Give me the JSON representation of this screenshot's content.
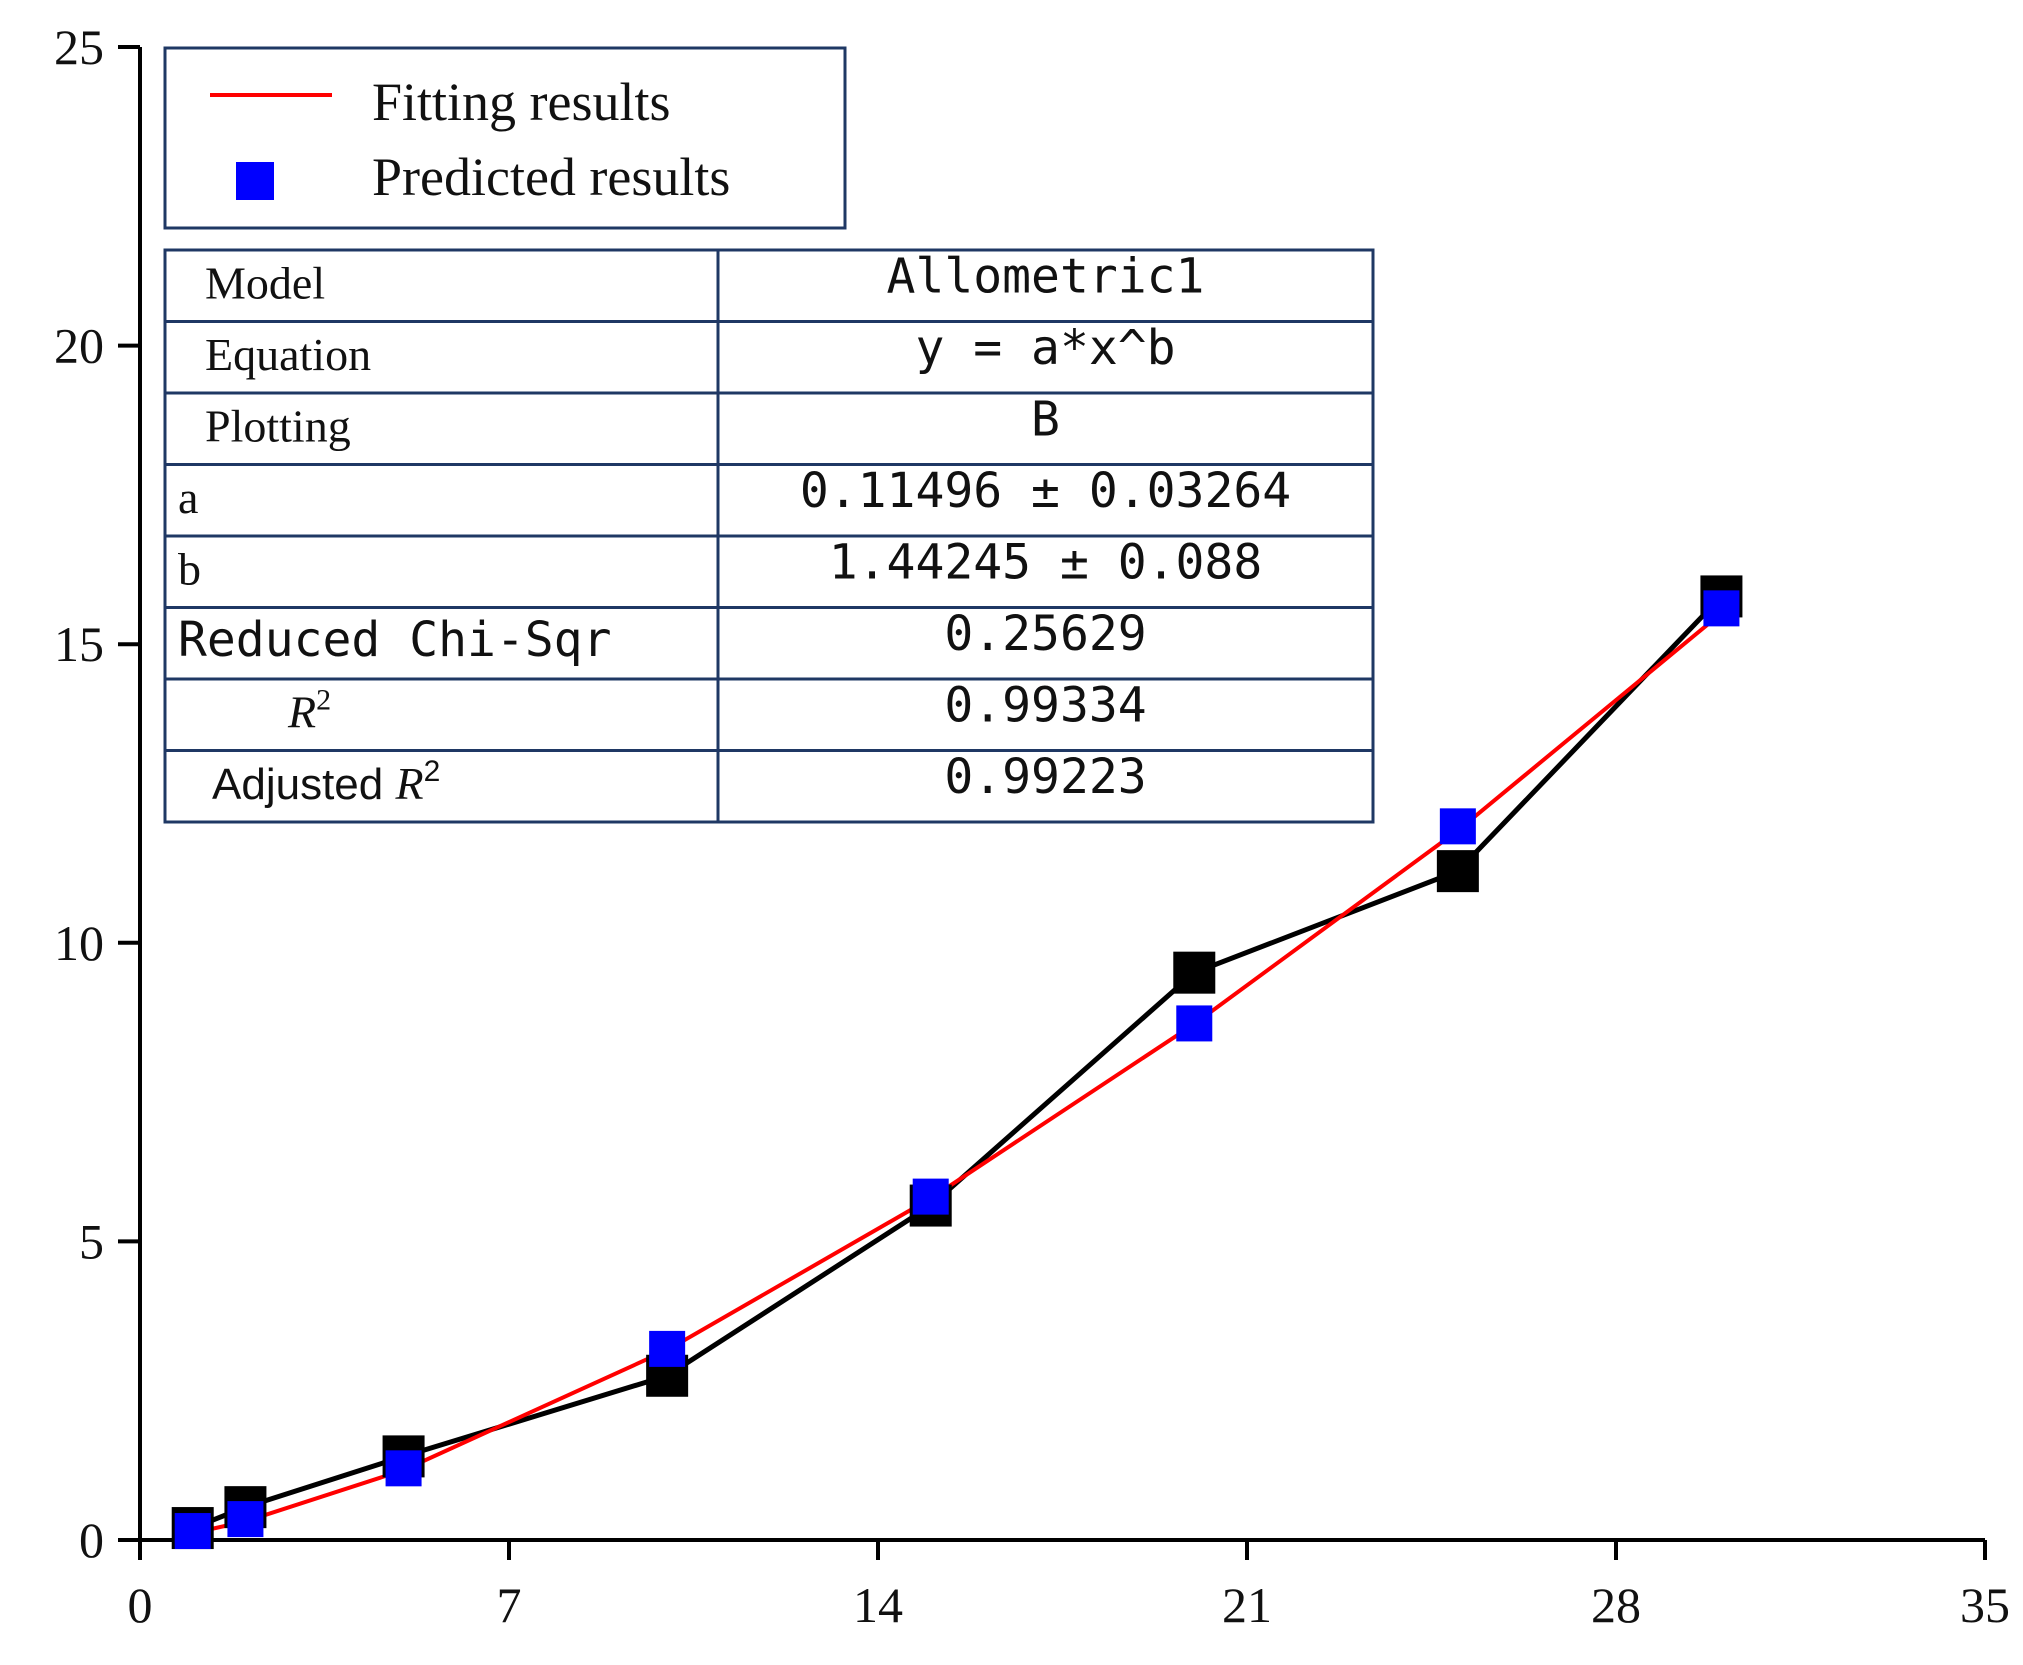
{
  "chart_data": {
    "type": "scatter",
    "xlim": [
      0,
      35
    ],
    "ylim": [
      0,
      25
    ],
    "x_ticks": [
      "0",
      "7",
      "14",
      "21",
      "28",
      "35"
    ],
    "y_ticks": [
      "0",
      "5",
      "10",
      "15",
      "20",
      "25"
    ],
    "observed": {
      "x": [
        1,
        2,
        5,
        10,
        15,
        20,
        25,
        30
      ],
      "y": [
        0.2,
        0.55,
        1.4,
        2.75,
        5.6,
        9.5,
        11.2,
        15.8
      ],
      "color": "#000000"
    },
    "fit": {
      "name": "Fitting results",
      "color": "#ff0000",
      "x": [
        1,
        2,
        5,
        10,
        15,
        20,
        25,
        30
      ],
      "y": [
        0.115,
        0.312,
        1.17,
        3.18,
        5.72,
        8.64,
        11.88,
        15.52
      ]
    },
    "predicted": {
      "name": "Predicted results",
      "color": "#0000ff",
      "x": [
        1,
        2,
        5,
        10,
        15,
        20,
        25,
        30
      ],
      "y": [
        0.15,
        0.35,
        1.2,
        3.2,
        5.75,
        8.65,
        11.95,
        15.6
      ]
    },
    "stats_table": [
      {
        "label": "Model",
        "value": "Allometric1"
      },
      {
        "label": "Equation",
        "value": "y = a*x^b"
      },
      {
        "label": "Plotting",
        "value": "B"
      },
      {
        "label": "a",
        "value": "0.11496 ± 0.03264"
      },
      {
        "label": "b",
        "value": "1.44245 ± 0.088"
      },
      {
        "label": "Reduced Chi-Sqr",
        "value": "0.25629"
      },
      {
        "label": "R",
        "sup": "2",
        "value": "0.99334"
      },
      {
        "label": "Adjusted",
        "label_italic": "R",
        "sup": "2",
        "value": "0.99223"
      }
    ]
  }
}
